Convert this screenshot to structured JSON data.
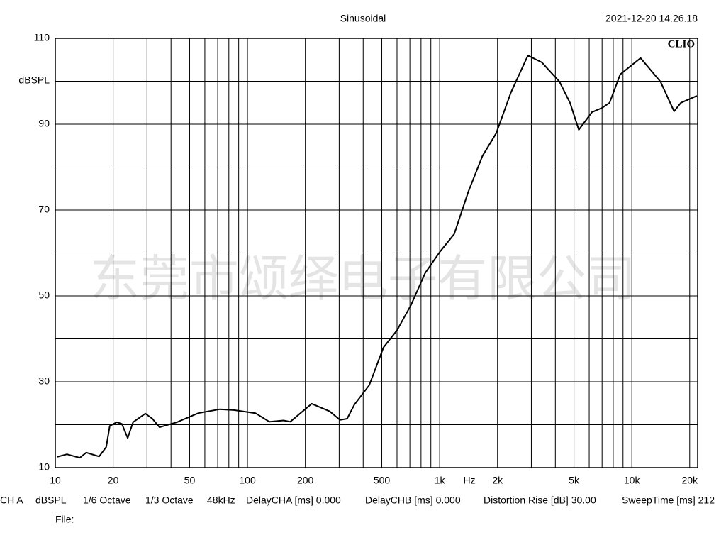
{
  "chart_data": {
    "type": "line",
    "title": "Sinusoidal",
    "timestamp": "2021-12-20 14.26.18",
    "brand": "CLIO",
    "watermark": "东莞市颂绎电子有限公司",
    "y_label": "dBSPL",
    "x_label": "Hz",
    "log_x": true,
    "grid": true,
    "color": "#000000",
    "xlim": [
      10,
      22000
    ],
    "ylim": [
      10,
      110
    ],
    "xticks": [
      10,
      20,
      50,
      100,
      200,
      500,
      {
        "value": 1000,
        "label": "1k"
      },
      {
        "value": 2000,
        "label": "2k"
      },
      {
        "value": 5000,
        "label": "5k"
      },
      {
        "value": 10000,
        "label": "10k"
      },
      {
        "value": 20000,
        "label": "20k"
      }
    ],
    "xminor": [
      30,
      40,
      60,
      70,
      80,
      90,
      300,
      400,
      600,
      700,
      800,
      900,
      3000,
      4000,
      6000,
      7000,
      8000,
      9000
    ],
    "yticks": [
      10,
      30,
      50,
      70,
      90,
      110
    ],
    "yminor": [
      20,
      40,
      60,
      80,
      100
    ],
    "x": [
      10.2,
      11.5,
      13.4,
      14.5,
      16.9,
      18.4,
      19.2,
      20.9,
      22.2,
      23.8,
      25.4,
      29.4,
      32,
      34.9,
      43,
      55.5,
      71.8,
      85,
      110,
      130,
      154,
      167,
      216,
      268,
      303,
      330,
      360,
      430,
      510,
      600,
      710,
      840,
      1000,
      1190,
      1410,
      1670,
      1970,
      2350,
      2880,
      3400,
      4200,
      4770,
      5300,
      6200,
      7000,
      7660,
      8700,
      11100,
      14100,
      16600,
      18000,
      21800
    ],
    "values": [
      12.5,
      13.1,
      12.3,
      13.5,
      12.6,
      14.8,
      19.7,
      20.6,
      20.2,
      16.9,
      20.6,
      22.6,
      21.4,
      19.4,
      20.6,
      22.7,
      23.6,
      23.4,
      22.7,
      20.7,
      21,
      20.7,
      24.9,
      23.1,
      21.1,
      21.4,
      24.7,
      29.2,
      38,
      42,
      47.9,
      55.3,
      60.2,
      64.4,
      74.3,
      82.6,
      87.9,
      97.4,
      106,
      104.4,
      99.9,
      95,
      88.7,
      92.8,
      93.8,
      95,
      101.6,
      105.4,
      99.9,
      93,
      95,
      96.6
    ],
    "footer_items": [
      "CH A",
      "dBSPL",
      "1/6 Octave",
      "1/3 Octave",
      "48kHz",
      "DelayCHA [ms] 0.000",
      "DelayCHB [ms] 0.000",
      "Distortion Rise [dB] 30.00",
      "SweepTime [ms] 212"
    ],
    "file_label": "File:"
  }
}
